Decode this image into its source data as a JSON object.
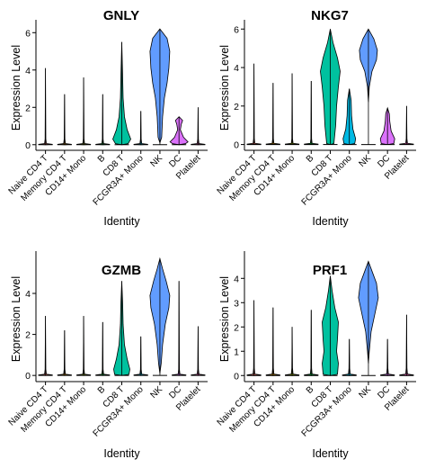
{
  "chart_data": [
    {
      "type": "violin",
      "title": "GNLY",
      "xlabel": "Identity",
      "ylabel": "Expression Level",
      "categories": [
        "Naive CD4 T",
        "Memory CD4 T",
        "CD14+ Mono",
        "B",
        "CD8 T",
        "FCGR3A+ Mono",
        "NK",
        "DC",
        "Platelet"
      ],
      "colors": [
        "#F8766D",
        "#D39200",
        "#93AA00",
        "#00BA38",
        "#00C19F",
        "#00B9E3",
        "#619CFF",
        "#DB72FB",
        "#FF61C3"
      ],
      "ylim": [
        -0.3,
        6.4
      ],
      "yticks": [
        0,
        2,
        4,
        6
      ],
      "max": [
        4.1,
        2.7,
        3.6,
        2.7,
        5.5,
        1.8,
        6.2,
        1.5,
        2.0
      ]
    },
    {
      "type": "violin",
      "title": "NKG7",
      "xlabel": "Identity",
      "ylabel": "Expression Level",
      "categories": [
        "Naive CD4 T",
        "Memory CD4 T",
        "CD14+ Mono",
        "B",
        "CD8 T",
        "FCGR3A+ Mono",
        "NK",
        "DC",
        "Platelet"
      ],
      "colors": [
        "#F8766D",
        "#D39200",
        "#93AA00",
        "#00BA38",
        "#00C19F",
        "#00B9E3",
        "#619CFF",
        "#DB72FB",
        "#FF61C3"
      ],
      "ylim": [
        -0.3,
        6.2
      ],
      "yticks": [
        0,
        2,
        4,
        6
      ],
      "max": [
        4.2,
        3.2,
        3.7,
        3.3,
        6.0,
        2.9,
        6.0,
        1.9,
        2.0
      ]
    },
    {
      "type": "violin",
      "title": "GZMB",
      "xlabel": "Identity",
      "ylabel": "Expression Level",
      "categories": [
        "Naive CD4 T",
        "Memory CD4 T",
        "CD14+ Mono",
        "B",
        "CD8 T",
        "FCGR3A+ Mono",
        "NK",
        "DC",
        "Platelet"
      ],
      "colors": [
        "#F8766D",
        "#D39200",
        "#93AA00",
        "#00BA38",
        "#00C19F",
        "#00B9E3",
        "#619CFF",
        "#DB72FB",
        "#FF61C3"
      ],
      "ylim": [
        -0.3,
        5.8
      ],
      "yticks": [
        0,
        2,
        4
      ],
      "max": [
        2.9,
        2.2,
        2.9,
        2.6,
        4.6,
        1.9,
        5.7,
        4.6,
        2.4
      ]
    },
    {
      "type": "violin",
      "title": "PRF1",
      "xlabel": "Identity",
      "ylabel": "Expression Level",
      "categories": [
        "Naive CD4 T",
        "Memory CD4 T",
        "CD14+ Mono",
        "B",
        "CD8 T",
        "FCGR3A+ Mono",
        "NK",
        "DC",
        "Platelet"
      ],
      "colors": [
        "#F8766D",
        "#D39200",
        "#93AA00",
        "#00BA38",
        "#00C19F",
        "#00B9E3",
        "#619CFF",
        "#DB72FB",
        "#FF61C3"
      ],
      "ylim": [
        -0.25,
        4.9
      ],
      "yticks": [
        0,
        1,
        2,
        3,
        4
      ],
      "max": [
        3.1,
        2.8,
        2.0,
        2.7,
        4.1,
        1.5,
        4.7,
        1.5,
        2.5
      ]
    }
  ]
}
